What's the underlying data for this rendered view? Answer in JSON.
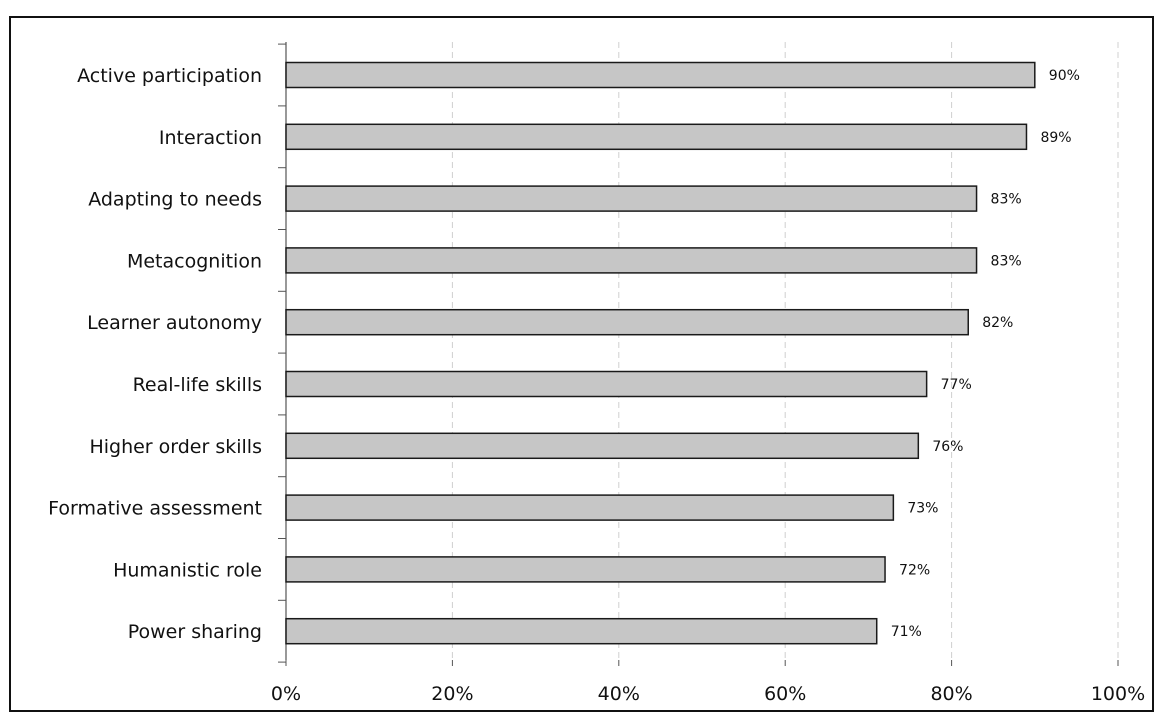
{
  "chart_data": {
    "type": "bar",
    "orientation": "horizontal",
    "categories": [
      "Active participation",
      "Interaction",
      "Adapting to needs",
      "Metacognition",
      "Learner autonomy",
      "Real-life skills",
      "Higher order skills",
      "Formative assessment",
      "Humanistic role",
      "Power sharing"
    ],
    "values": [
      90,
      89,
      83,
      83,
      82,
      77,
      76,
      73,
      72,
      71
    ],
    "data_labels": [
      "90%",
      "89%",
      "83%",
      "83%",
      "82%",
      "77%",
      "76%",
      "73%",
      "72%",
      "71%"
    ],
    "xticks": [
      0,
      20,
      40,
      60,
      80,
      100
    ],
    "xtick_labels": [
      "0%",
      "20%",
      "40%",
      "60%",
      "80%",
      "100%"
    ],
    "xlim": [
      0,
      100
    ],
    "grid": "vertical",
    "legend": "none",
    "title": "",
    "xlabel": "",
    "ylabel": "",
    "colors": {
      "bar_fill": "#c6c6c6",
      "bar_stroke": "#1a1a1a",
      "grid": "#d0d0d0",
      "axis": "#555555",
      "text": "#111111"
    }
  }
}
